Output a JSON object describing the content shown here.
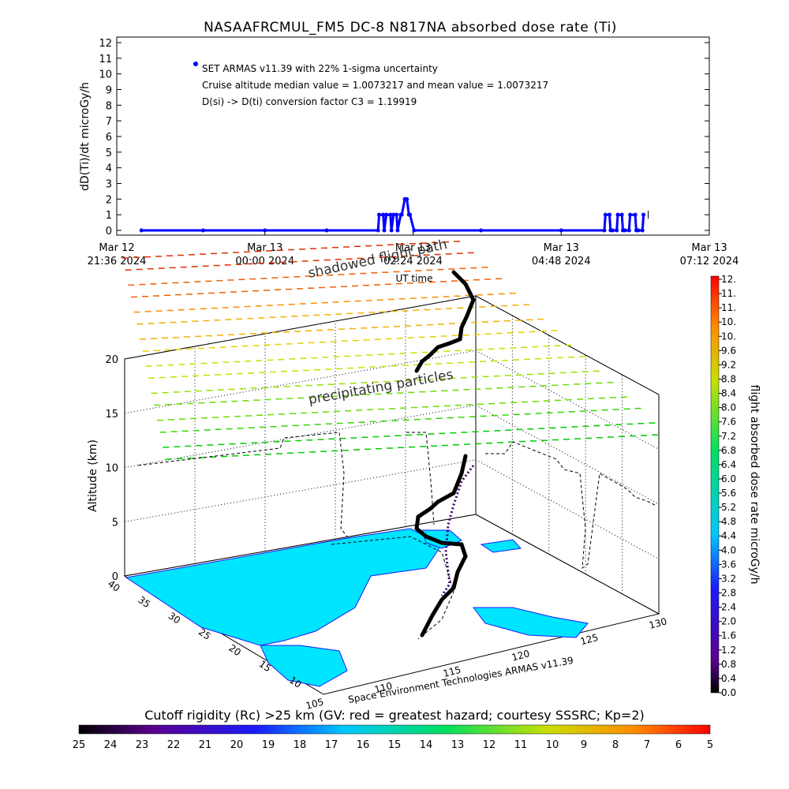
{
  "title": "NASAAFRCMUL_FM5 DC-8   N817NA absorbed dose rate (Ti)",
  "top_chart": {
    "ylabel": "dD(Ti)/dt microGy/h",
    "y_ticks": [
      "0",
      "1",
      "2",
      "3",
      "4",
      "5",
      "6",
      "7",
      "8",
      "9",
      "10",
      "11",
      "12"
    ],
    "x_ticks": [
      {
        "line1": "Mar 12",
        "line2": "21:36 2024"
      },
      {
        "line1": "Mar 13",
        "line2": "00:00 2024"
      },
      {
        "line1": "Mar 13",
        "line2": "02:24 2024"
      },
      {
        "line1": "Mar 13",
        "line2": "04:48 2024"
      },
      {
        "line1": "Mar 13",
        "line2": "07:12 2024"
      }
    ],
    "xlabel": "UT time",
    "legend_text": "SET ARMAS v11.39 with 22% 1-sigma uncertainty",
    "note_median": "Cruise altitude median value = 1.0073217 and mean value = 1.0073217",
    "note_conversion": "D(si) -> D(ti) conversion factor C3 = 1.19919"
  },
  "chart_data": [
    {
      "type": "line",
      "title": "NASAAFRCMUL_FM5 DC-8   N817NA absorbed dose rate (Ti)",
      "xlabel": "UT time",
      "ylabel": "dD(Ti)/dt microGy/h",
      "ylim": [
        0,
        12
      ],
      "xlim": [
        "2024-03-12 21:36",
        "2024-03-13 07:12"
      ],
      "series": [
        {
          "name": "SET ARMAS v11.39 with 22% 1-sigma uncertainty",
          "color": "#0000ff",
          "x": [
            "2024-03-12 22:00",
            "2024-03-12 23:00",
            "2024-03-13 00:00",
            "2024-03-13 01:00",
            "2024-03-13 01:50",
            "2024-03-13 01:51",
            "2024-03-13 01:55",
            "2024-03-13 01:56",
            "2024-03-13 01:58",
            "2024-03-13 02:02",
            "2024-03-13 02:03",
            "2024-03-13 02:05",
            "2024-03-13 02:08",
            "2024-03-13 02:09",
            "2024-03-13 02:12",
            "2024-03-13 02:13",
            "2024-03-13 02:16",
            "2024-03-13 02:18",
            "2024-03-13 02:20",
            "2024-03-13 02:21",
            "2024-03-13 02:25",
            "2024-03-13 03:30",
            "2024-03-13 04:48",
            "2024-03-13 05:30",
            "2024-03-13 05:31",
            "2024-03-13 05:35",
            "2024-03-13 05:36",
            "2024-03-13 05:38",
            "2024-03-13 05:42",
            "2024-03-13 05:43",
            "2024-03-13 05:47",
            "2024-03-13 05:48",
            "2024-03-13 05:50",
            "2024-03-13 05:54",
            "2024-03-13 05:55",
            "2024-03-13 06:00",
            "2024-03-13 06:01",
            "2024-03-13 06:03",
            "2024-03-13 06:07",
            "2024-03-13 06:08"
          ],
          "y": [
            0,
            0,
            0,
            0,
            0,
            1,
            1,
            0,
            1,
            1,
            0,
            1,
            1,
            0,
            1,
            1,
            2,
            2,
            1,
            1,
            0,
            0,
            0,
            0,
            1,
            1,
            0,
            0,
            0,
            1,
            1,
            0,
            0,
            0,
            1,
            1,
            0,
            0,
            0,
            1
          ]
        }
      ]
    },
    {
      "type": "scatter",
      "title": "flight path",
      "xlabel": "",
      "ylabel": "Altitude (km)",
      "z_ticks": [
        "0",
        "5",
        "10",
        "15",
        "20"
      ],
      "lon_ticks": [
        "105",
        "110",
        "115",
        "120",
        "125",
        "130"
      ],
      "lat_ticks": [
        "10",
        "15",
        "20",
        "25",
        "30",
        "35",
        "40"
      ],
      "annotations": [
        "shadowed flight path",
        "precipitating particles",
        "Space Environment Technologies ARMAS v11.39"
      ],
      "colorbar": {
        "label": "flight absorbed dose rate microGy/h",
        "ticks": [
          "0.0",
          "0.4",
          "0.8",
          "1.2",
          "1.6",
          "2.0",
          "2.4",
          "2.8",
          "3.2",
          "3.6",
          "4.0",
          "4.4",
          "4.8",
          "5.2",
          "5.6",
          "6.0",
          "6.4",
          "6.8",
          "7.2",
          "7.6",
          "8.0",
          "8.4",
          "8.8",
          "9.2",
          "9.6",
          "10.",
          "10.",
          "11.",
          "11.",
          "12."
        ]
      },
      "cutoff_rigidity": {
        "label": "Cutoff rigidity (Rc) >25 km (GV: red = greatest hazard; courtesy SSSRC; Kp=2)",
        "ticks": [
          "25",
          "24",
          "23",
          "22",
          "21",
          "20",
          "19",
          "18",
          "17",
          "16",
          "15",
          "14",
          "13",
          "12",
          "11",
          "10",
          "9",
          "8",
          "7",
          "6",
          "5"
        ]
      }
    }
  ],
  "colors": {
    "series": "#0000ff",
    "land": "#00e5ff",
    "path": "#000000",
    "coast": "#1a1aff"
  }
}
